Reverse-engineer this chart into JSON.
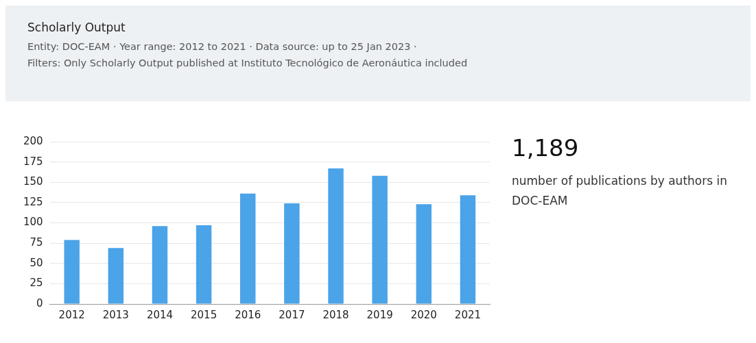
{
  "chart_data": {
    "type": "bar",
    "title": "Scholarly Output",
    "subtitle": "Entity: DOC-EAM · Year range: 2012 to 2021 · Data source: up to 25 Jan 2023 ·",
    "annotations": [
      "Filters: Only Scholarly Output published at Instituto Tecnológico de Aeronáutica included",
      "1,189",
      "number of publications by authors in DOC-EAM"
    ],
    "categories": [
      "2012",
      "2013",
      "2014",
      "2015",
      "2016",
      "2017",
      "2018",
      "2019",
      "2020",
      "2021"
    ],
    "values": [
      79,
      69,
      96,
      97,
      136,
      124,
      167,
      158,
      123,
      134
    ],
    "color": "#4ba3e8",
    "ylim": [
      0,
      200
    ],
    "yticks": [
      0,
      25,
      50,
      75,
      100,
      125,
      150,
      175,
      200
    ],
    "grid": "y",
    "legend": false
  }
}
